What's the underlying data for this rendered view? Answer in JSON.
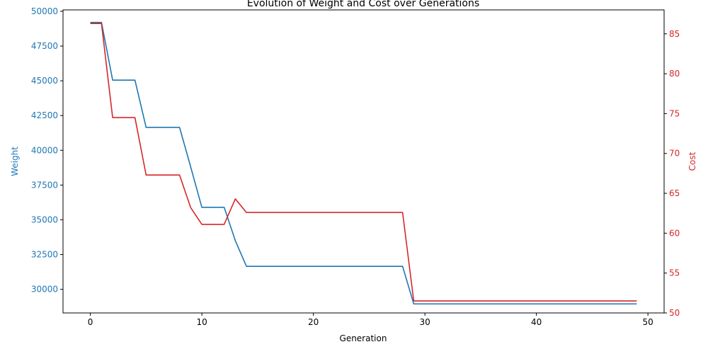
{
  "chart_data": {
    "type": "line",
    "title": "Evolution of Weight and Cost over Generations",
    "xlabel": "Generation",
    "xlim": [
      -2.45,
      51.45
    ],
    "xticks": [
      0,
      10,
      20,
      30,
      40,
      50
    ],
    "x": [
      0,
      1,
      2,
      3,
      4,
      5,
      6,
      7,
      8,
      9,
      10,
      11,
      12,
      13,
      14,
      15,
      16,
      17,
      18,
      19,
      20,
      21,
      22,
      23,
      24,
      25,
      26,
      27,
      28,
      29,
      30,
      31,
      32,
      33,
      34,
      35,
      36,
      37,
      38,
      39,
      40,
      41,
      42,
      43,
      44,
      45,
      46,
      47,
      48,
      49
    ],
    "axes": {
      "left": {
        "label": "Weight",
        "ylim": [
          28300,
          50100
        ],
        "ticks": [
          30000,
          32500,
          35000,
          37500,
          40000,
          42500,
          45000,
          47500,
          50000
        ],
        "color": "#1f77b4"
      },
      "right": {
        "label": "Cost",
        "ylim": [
          50,
          88
        ],
        "ticks": [
          50,
          55,
          60,
          65,
          70,
          75,
          80,
          85
        ],
        "color": "#d62728"
      }
    },
    "series": [
      {
        "axis": "left",
        "color": "#1f77b4",
        "values": [
          49200,
          49200,
          45050,
          45050,
          45050,
          41650,
          41650,
          41650,
          41650,
          38800,
          35900,
          35900,
          35900,
          33500,
          31650,
          31650,
          31650,
          31650,
          31650,
          31650,
          31650,
          31650,
          31650,
          31650,
          31650,
          31650,
          31650,
          31650,
          31650,
          28950,
          28950,
          28950,
          28950,
          28950,
          28950,
          28950,
          28950,
          28950,
          28950,
          28950,
          28950,
          28950,
          28950,
          28950,
          28950,
          28950,
          28950,
          28950,
          28950,
          28950
        ]
      },
      {
        "axis": "right",
        "color": "#d62728",
        "values": [
          86.3,
          86.3,
          74.5,
          74.5,
          74.5,
          67.3,
          67.3,
          67.3,
          67.3,
          63.2,
          61.1,
          61.1,
          61.1,
          64.3,
          62.6,
          62.6,
          62.6,
          62.6,
          62.6,
          62.6,
          62.6,
          62.6,
          62.6,
          62.6,
          62.6,
          62.6,
          62.6,
          62.6,
          62.6,
          51.5,
          51.5,
          51.5,
          51.5,
          51.5,
          51.5,
          51.5,
          51.5,
          51.5,
          51.5,
          51.5,
          51.5,
          51.5,
          51.5,
          51.5,
          51.5,
          51.5,
          51.5,
          51.5,
          51.5,
          51.5
        ]
      }
    ]
  }
}
